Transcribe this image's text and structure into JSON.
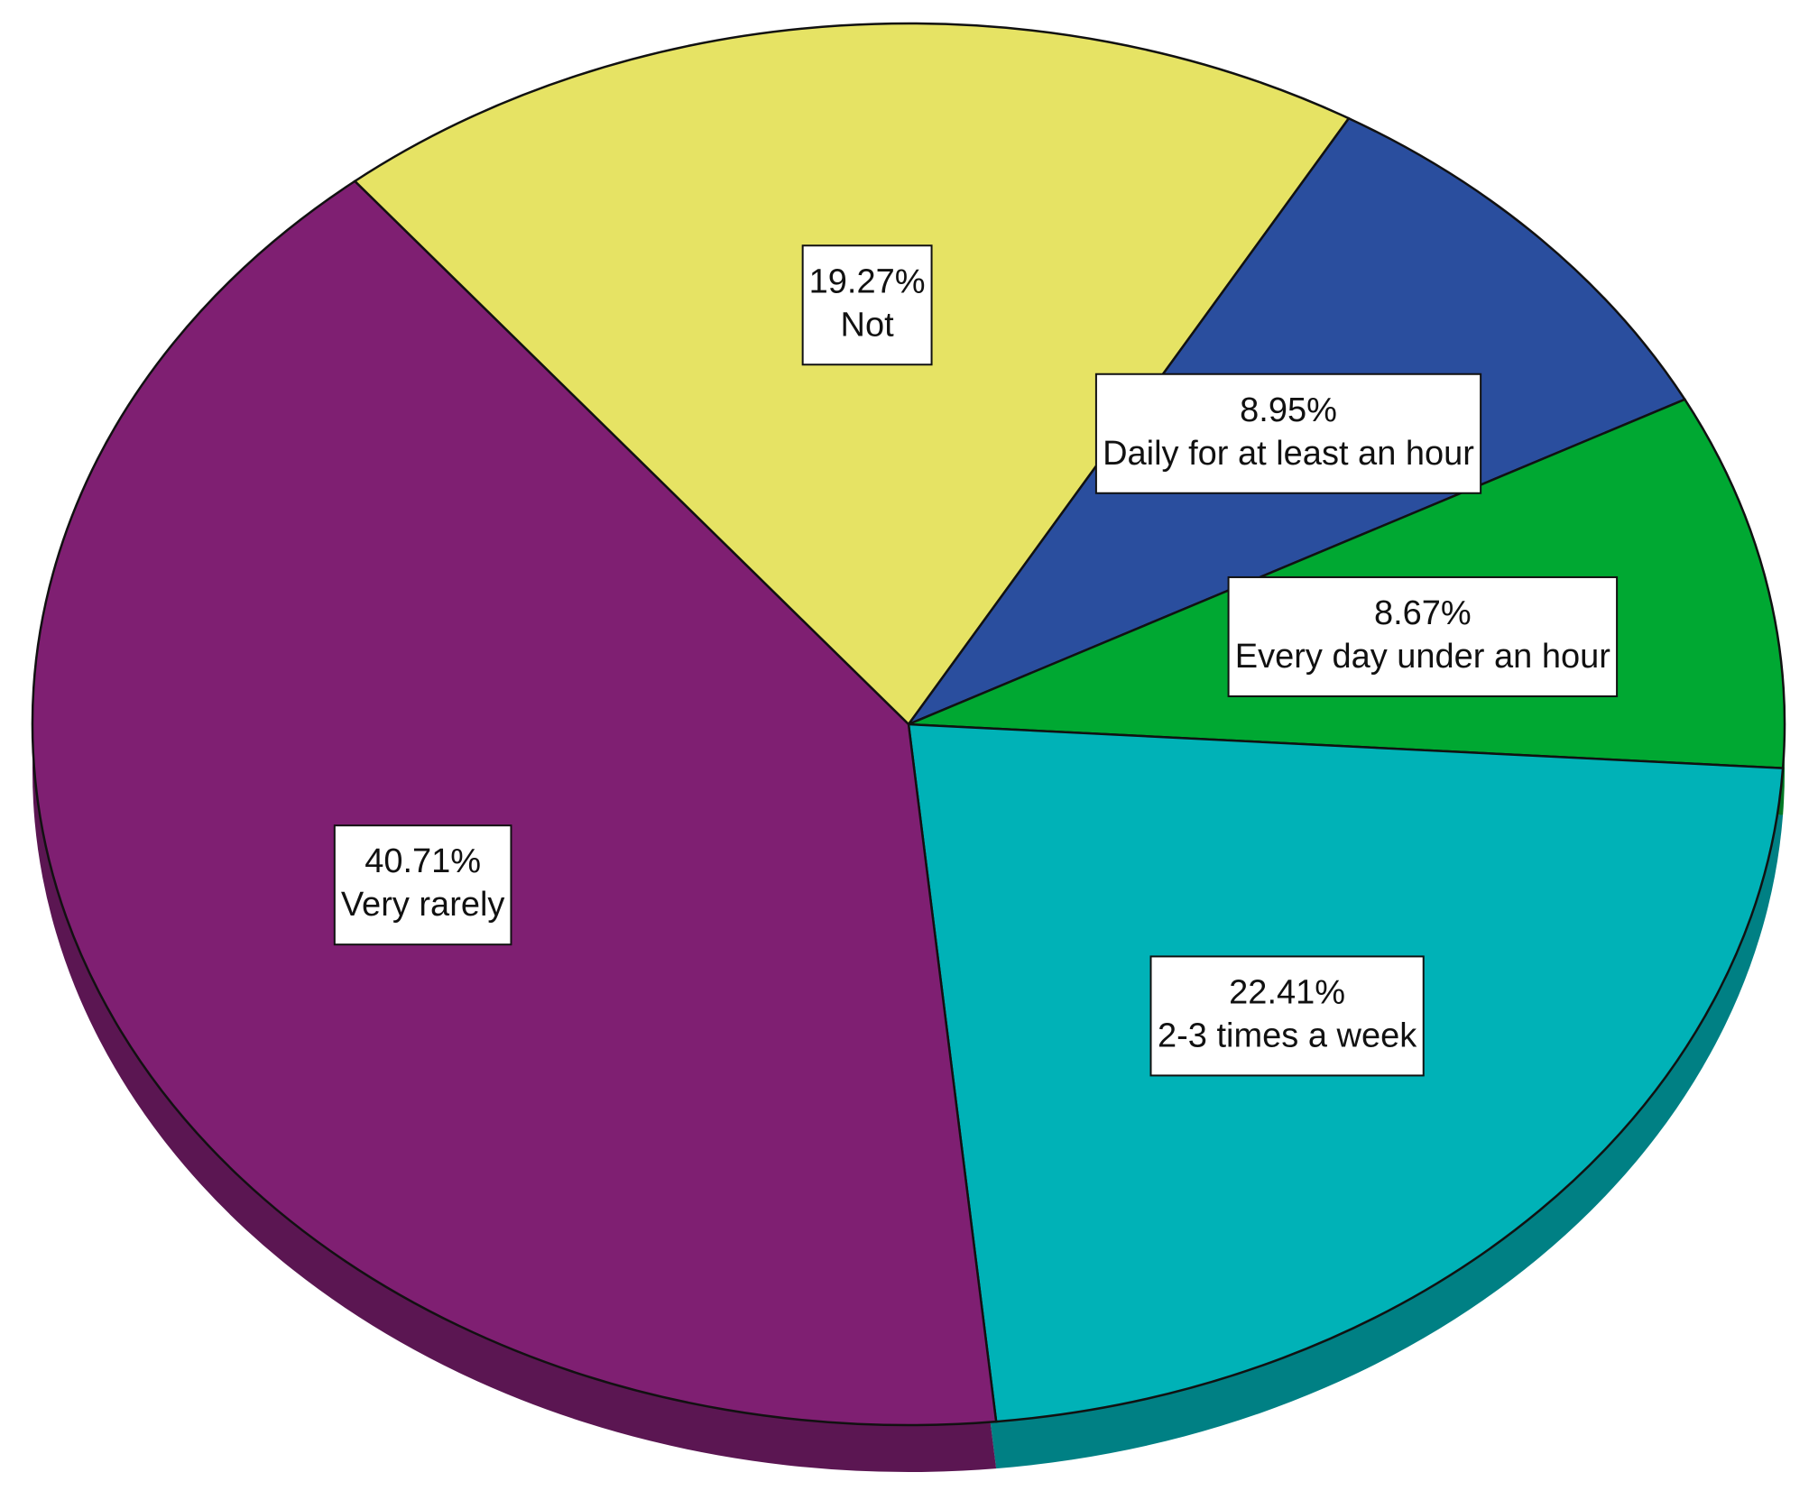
{
  "chart_data": {
    "type": "pie",
    "categories": [
      "Not",
      "Daily for at least an hour",
      "Every day under an hour",
      "2-3 times a week",
      "Very rarely"
    ],
    "values": [
      19.27,
      8.95,
      8.67,
      22.41,
      40.71
    ],
    "value_labels": [
      "19.27%",
      "8.95%",
      "8.67%",
      "22.41%",
      "40.71%"
    ],
    "colors": [
      "#e6e364",
      "#2a4e9e",
      "#00a832",
      "#00b2b7",
      "#7f1f72"
    ]
  }
}
